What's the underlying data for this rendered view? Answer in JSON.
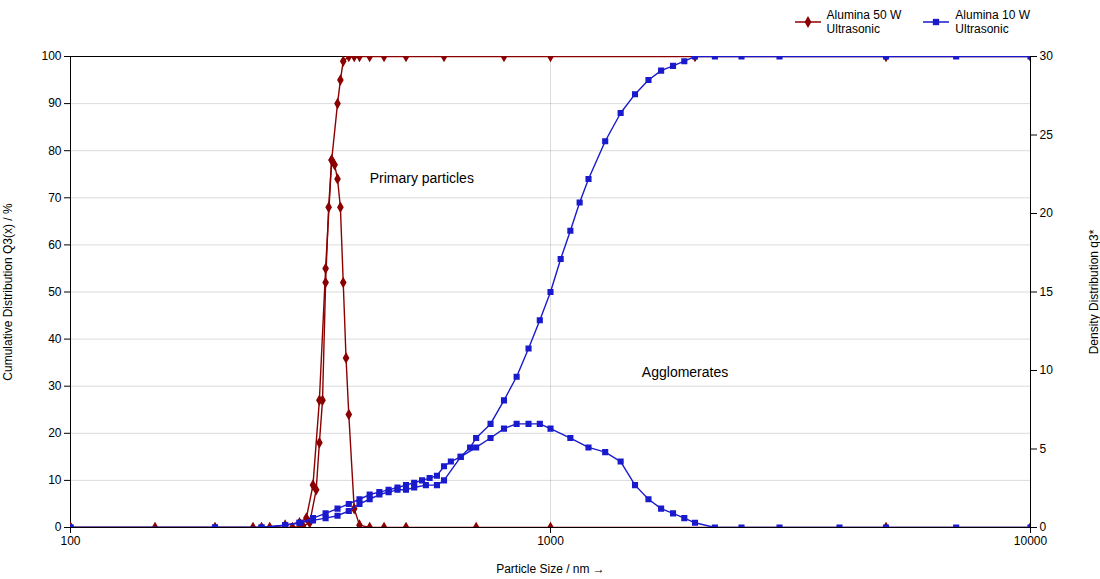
{
  "chart_data": {
    "type": "line",
    "xlabel": "Particle Size / nm",
    "ylabel": "Cumulative Distribution Q3(x) / %",
    "y2label": "Density Distribution q3*",
    "log": "x",
    "xlim": [
      100,
      10000
    ],
    "xticks": [
      100,
      1000,
      10000
    ],
    "ylim": [
      0,
      100
    ],
    "yticks": [
      0,
      10,
      20,
      30,
      40,
      50,
      60,
      70,
      80,
      90,
      100
    ],
    "y2lim": [
      0,
      30
    ],
    "y2ticks": [
      0,
      5,
      10,
      15,
      20,
      25,
      30
    ],
    "grid": true,
    "legend": "upper right",
    "annotations": [
      {
        "text": "Primary particles",
        "x": 420,
        "y": 74
      },
      {
        "text": "Agglomerates",
        "x": 1550,
        "y": 33
      }
    ],
    "series": [
      {
        "name": "Alumina 50 W\nUltrasonic",
        "color": "#8b0000",
        "marker": "diamond",
        "x": [
          100,
          150,
          200,
          240,
          260,
          280,
          300,
          310,
          320,
          330,
          340,
          350,
          360,
          365,
          370,
          380,
          390,
          400,
          420,
          450,
          500,
          600,
          800,
          1000,
          2000,
          5000,
          10000
        ],
        "values": [
          0,
          0,
          0,
          0,
          0,
          0.5,
          1,
          2,
          9,
          27,
          55,
          78,
          90,
          95,
          99,
          100,
          100,
          100,
          100,
          100,
          100,
          100,
          100,
          100,
          100,
          100,
          100
        ]
      },
      {
        "color": "#8b0000",
        "marker": "diamond",
        "x": [
          100,
          250,
          290,
          305,
          315,
          325,
          330,
          335,
          340,
          345,
          350,
          355,
          360,
          365,
          370,
          375,
          380,
          390,
          400,
          420,
          450,
          500,
          700,
          1000,
          5000,
          10000
        ],
        "values": [
          0,
          0,
          0,
          0.3,
          1,
          8,
          18,
          27,
          52,
          68,
          78,
          77,
          74,
          68,
          52,
          36,
          24,
          4,
          0.5,
          0,
          0,
          0,
          0,
          0,
          0,
          0
        ]
      },
      {
        "name": "Alumina 10 W\nUltrasonic",
        "color": "#1a1acd",
        "marker": "square",
        "x": [
          100,
          200,
          250,
          280,
          300,
          320,
          340,
          360,
          380,
          400,
          420,
          440,
          460,
          480,
          500,
          520,
          540,
          560,
          580,
          600,
          620,
          650,
          680,
          700,
          750,
          800,
          850,
          900,
          950,
          1000,
          1050,
          1100,
          1150,
          1200,
          1300,
          1400,
          1500,
          1600,
          1700,
          1800,
          1900,
          2000,
          2200,
          2500,
          3000,
          5000,
          7000,
          10000
        ],
        "values": [
          0,
          0,
          0,
          0.5,
          1,
          2,
          3,
          4,
          5,
          6,
          7,
          7.5,
          8,
          8.5,
          9,
          9.5,
          10,
          10.5,
          11,
          13,
          14,
          15,
          17,
          19,
          22,
          27,
          32,
          38,
          44,
          50,
          57,
          63,
          69,
          74,
          82,
          88,
          92,
          95,
          97,
          98,
          99,
          100,
          100,
          100,
          100,
          100,
          100,
          100
        ]
      },
      {
        "color": "#1a1acd",
        "marker": "square",
        "x": [
          100,
          200,
          250,
          280,
          300,
          320,
          340,
          360,
          380,
          400,
          420,
          440,
          460,
          480,
          500,
          520,
          550,
          580,
          600,
          650,
          700,
          750,
          800,
          850,
          900,
          950,
          1000,
          1100,
          1200,
          1300,
          1400,
          1500,
          1600,
          1700,
          1800,
          1900,
          2000,
          2200,
          2500,
          3000,
          4000,
          5000,
          7000,
          10000
        ],
        "values": [
          0,
          0,
          0,
          0.5,
          1,
          1.5,
          2,
          2.5,
          3.5,
          5,
          6,
          7,
          7.5,
          8,
          8,
          8.5,
          9,
          9,
          10,
          15,
          17,
          19,
          21,
          22,
          22,
          22,
          21,
          19,
          17,
          16,
          14,
          9,
          6,
          4,
          3,
          2,
          1,
          0,
          0,
          0,
          0,
          0,
          0,
          0
        ]
      }
    ]
  }
}
